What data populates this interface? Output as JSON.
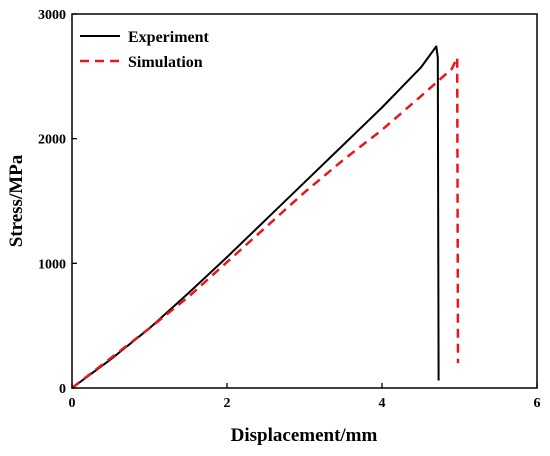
{
  "chart_data": {
    "type": "line",
    "xlabel": "Displacement/mm",
    "ylabel": "Stress/MPa",
    "xlim": [
      0,
      6
    ],
    "ylim": [
      0,
      3000
    ],
    "xticks": [
      0,
      2,
      4,
      6
    ],
    "yticks": [
      0,
      1000,
      2000,
      3000
    ],
    "grid": false,
    "legend_position": "top-left",
    "series": [
      {
        "name": "Experiment",
        "color": "#000000",
        "dash": "solid",
        "x": [
          0,
          0.5,
          1.0,
          1.5,
          2.0,
          2.5,
          3.0,
          3.5,
          4.0,
          4.5,
          4.7,
          4.72,
          4.73
        ],
        "y": [
          0,
          230,
          480,
          760,
          1050,
          1350,
          1650,
          1950,
          2250,
          2570,
          2740,
          2650,
          60
        ]
      },
      {
        "name": "Simulation",
        "color": "#e8161b",
        "dash": "dashed",
        "x": [
          0,
          0.5,
          1.0,
          1.5,
          2.0,
          2.5,
          3.0,
          3.5,
          4.0,
          4.5,
          4.9,
          4.97,
          4.98
        ],
        "y": [
          0,
          240,
          480,
          730,
          1010,
          1290,
          1570,
          1830,
          2070,
          2340,
          2560,
          2650,
          200
        ]
      }
    ]
  }
}
